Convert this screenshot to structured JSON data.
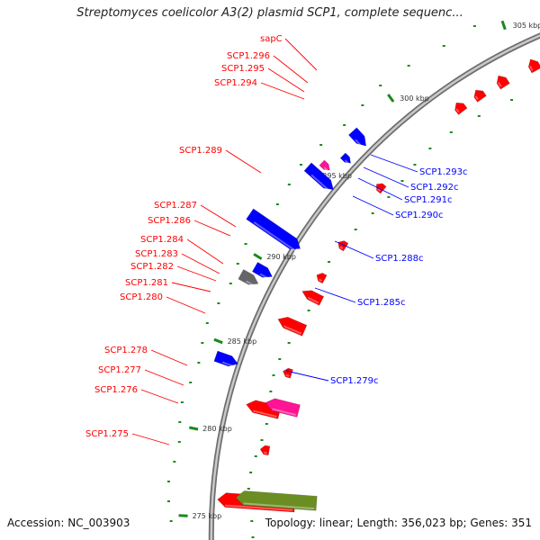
{
  "map": {
    "title": "Streptomyces coelicolor A3(2) plasmid SCP1, complete sequenc...",
    "accession": "Accession: NC_003903",
    "summary": "Topology: linear; Length: 356,023 bp; Genes: 351"
  },
  "scale_labels": [
    "305 kbp",
    "300 kbp",
    "295 kbp",
    "290 kbp",
    "285 kbp",
    "280 kbp",
    "275 kbp"
  ],
  "forward_labels": [
    "sapC",
    "SCP1.296",
    "SCP1.295",
    "SCP1.294",
    "SCP1.289",
    "SCP1.287",
    "SCP1.286",
    "SCP1.284",
    "SCP1.283",
    "SCP1.282",
    "SCP1.281",
    "SCP1.280",
    "SCP1.278",
    "SCP1.277",
    "SCP1.276",
    "SCP1.275"
  ],
  "reverse_labels": [
    "SCP1.293c",
    "SCP1.292c",
    "SCP1.291c",
    "SCP1.290c",
    "SCP1.288c",
    "SCP1.285c",
    "SCP1.279c"
  ],
  "colors": {
    "forward_gene": "#ff0000",
    "reverse_gene": "#0000ff",
    "pink_gene": "#ff1493",
    "gray_gene": "#666666",
    "olive_gene": "#6b8e23",
    "navy_gene": "#1a1a7a",
    "cyan_gene": "#5bb3d0",
    "backbone": "#8c8c8c",
    "gc_marks": "#1a8a1a"
  }
}
